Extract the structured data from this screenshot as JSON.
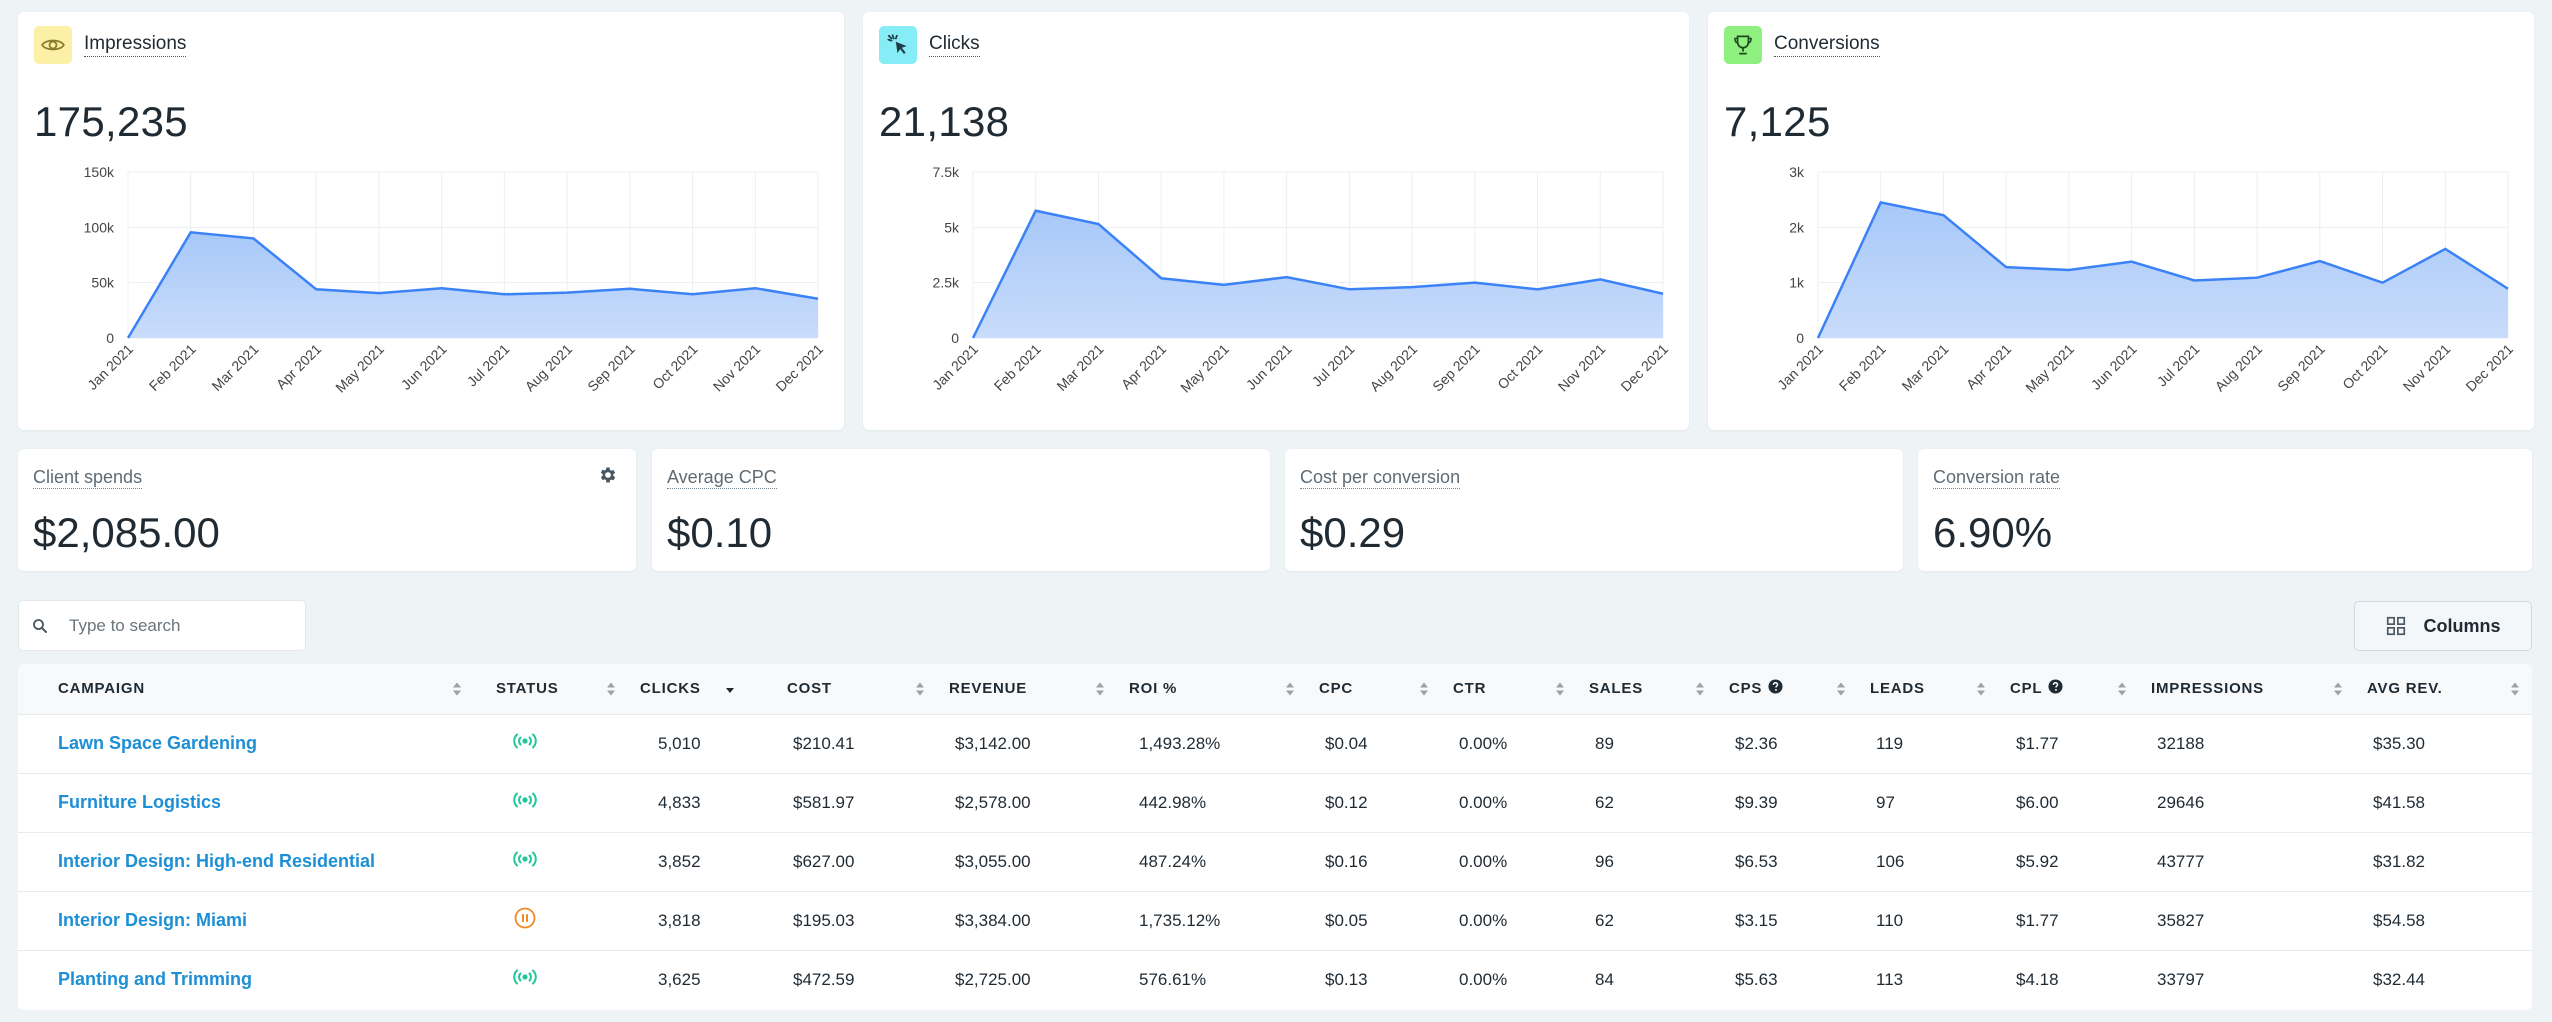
{
  "colors": {
    "accent": "#1d8fd4",
    "chart_line": "#3b82f6",
    "chart_fill": "#bcd6fb",
    "active_status": "#1fc79b",
    "paused_status": "#f08a24",
    "impressions_icon_bg": "#fcf0a6",
    "clicks_icon_bg": "#86ecf6",
    "conversions_icon_bg": "#8ef07e"
  },
  "metrics": [
    {
      "label": "Impressions",
      "value": "175,235",
      "icon": "eye-icon"
    },
    {
      "label": "Clicks",
      "value": "21,138",
      "icon": "cursor-click-icon"
    },
    {
      "label": "Conversions",
      "value": "7,125",
      "icon": "trophy-icon"
    }
  ],
  "chart_data": [
    {
      "type": "area",
      "categories": [
        "Jan 2021",
        "Feb 2021",
        "Mar 2021",
        "Apr 2021",
        "May 2021",
        "Jun 2021",
        "Jul 2021",
        "Aug 2021",
        "Sep 2021",
        "Oct 2021",
        "Nov 2021",
        "Dec 2021"
      ],
      "values": [
        0,
        95500,
        90000,
        44000,
        40500,
        45000,
        39500,
        41000,
        44500,
        39500,
        45000,
        35500
      ],
      "ylim": [
        0,
        150000
      ],
      "yticks": [
        "0",
        "50k",
        "100k",
        "150k"
      ],
      "grid": true
    },
    {
      "type": "area",
      "categories": [
        "Jan 2021",
        "Feb 2021",
        "Mar 2021",
        "Apr 2021",
        "May 2021",
        "Jun 2021",
        "Jul 2021",
        "Aug 2021",
        "Sep 2021",
        "Oct 2021",
        "Nov 2021",
        "Dec 2021"
      ],
      "values": [
        0,
        5750,
        5150,
        2700,
        2400,
        2750,
        2200,
        2300,
        2500,
        2200,
        2650,
        2000
      ],
      "ylim": [
        0,
        7500
      ],
      "yticks": [
        "0",
        "2.5k",
        "5k",
        "7.5k"
      ],
      "grid": true
    },
    {
      "type": "area",
      "categories": [
        "Jan 2021",
        "Feb 2021",
        "Mar 2021",
        "Apr 2021",
        "May 2021",
        "Jun 2021",
        "Jul 2021",
        "Aug 2021",
        "Sep 2021",
        "Oct 2021",
        "Nov 2021",
        "Dec 2021"
      ],
      "values": [
        0,
        2450,
        2220,
        1280,
        1230,
        1380,
        1040,
        1090,
        1390,
        1000,
        1610,
        890
      ],
      "ylim": [
        0,
        3000
      ],
      "yticks": [
        "0",
        "1k",
        "2k",
        "3k"
      ],
      "grid": true
    }
  ],
  "stats": [
    {
      "label": "Client spends",
      "value": "$2,085.00"
    },
    {
      "label": "Average CPC",
      "value": "$0.10"
    },
    {
      "label": "Cost per conversion",
      "value": "$0.29"
    },
    {
      "label": "Conversion rate",
      "value": "6.90%"
    }
  ],
  "search": {
    "placeholder": "Type to search"
  },
  "columns_button": {
    "label": "Columns"
  },
  "table": {
    "columns": [
      {
        "label": "CAMPAIGN",
        "help": false,
        "sort": "none"
      },
      {
        "label": "STATUS",
        "help": false,
        "sort": "none"
      },
      {
        "label": "CLICKS",
        "help": false,
        "sort": "desc"
      },
      {
        "label": "COST",
        "help": false,
        "sort": "none"
      },
      {
        "label": "REVENUE",
        "help": false,
        "sort": "none"
      },
      {
        "label": "ROI %",
        "help": false,
        "sort": "none"
      },
      {
        "label": "CPC",
        "help": false,
        "sort": "none"
      },
      {
        "label": "CTR",
        "help": false,
        "sort": "none"
      },
      {
        "label": "SALES",
        "help": false,
        "sort": "none"
      },
      {
        "label": "CPS",
        "help": true,
        "sort": "none"
      },
      {
        "label": "LEADS",
        "help": false,
        "sort": "none"
      },
      {
        "label": "CPL",
        "help": true,
        "sort": "none"
      },
      {
        "label": "IMPRESSIONS",
        "help": false,
        "sort": "none"
      },
      {
        "label": "AVG REV.",
        "help": false,
        "sort": "none"
      }
    ],
    "rows": [
      {
        "campaign": "Lawn Space Gardening",
        "status": "active",
        "cells": [
          "5,010",
          "$210.41",
          "$3,142.00",
          "1,493.28%",
          "$0.04",
          "0.00%",
          "89",
          "$2.36",
          "119",
          "$1.77",
          "32188",
          "$35.30"
        ]
      },
      {
        "campaign": "Furniture Logistics",
        "status": "active",
        "cells": [
          "4,833",
          "$581.97",
          "$2,578.00",
          "442.98%",
          "$0.12",
          "0.00%",
          "62",
          "$9.39",
          "97",
          "$6.00",
          "29646",
          "$41.58"
        ]
      },
      {
        "campaign": "Interior Design: High-end Residential",
        "status": "active",
        "cells": [
          "3,852",
          "$627.00",
          "$3,055.00",
          "487.24%",
          "$0.16",
          "0.00%",
          "96",
          "$6.53",
          "106",
          "$5.92",
          "43777",
          "$31.82"
        ]
      },
      {
        "campaign": "Interior Design: Miami",
        "status": "paused",
        "cells": [
          "3,818",
          "$195.03",
          "$3,384.00",
          "1,735.12%",
          "$0.05",
          "0.00%",
          "62",
          "$3.15",
          "110",
          "$1.77",
          "35827",
          "$54.58"
        ]
      },
      {
        "campaign": "Planting and Trimming",
        "status": "active",
        "cells": [
          "3,625",
          "$472.59",
          "$2,725.00",
          "576.61%",
          "$0.13",
          "0.00%",
          "84",
          "$5.63",
          "113",
          "$4.18",
          "33797",
          "$32.44"
        ]
      }
    ]
  }
}
